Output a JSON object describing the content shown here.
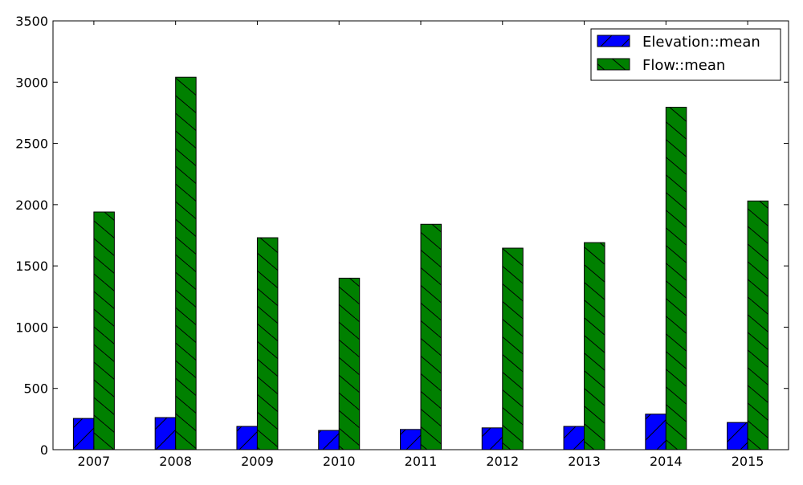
{
  "chart_data": {
    "type": "bar",
    "categories": [
      "2007",
      "2008",
      "2009",
      "2010",
      "2011",
      "2012",
      "2013",
      "2014",
      "2015"
    ],
    "series": [
      {
        "name": "Elevation::mean",
        "values": [
          255,
          262,
          190,
          157,
          165,
          178,
          190,
          290,
          222
        ],
        "color": "#0000ff",
        "hatch": "/"
      },
      {
        "name": "Flow::mean",
        "values": [
          1940,
          3040,
          1730,
          1400,
          1840,
          1645,
          1690,
          2795,
          2030
        ],
        "color": "#008000",
        "hatch": "\\"
      }
    ],
    "title": "",
    "xlabel": "",
    "ylabel": "",
    "ylim": [
      0,
      3500
    ],
    "yticks": [
      0,
      500,
      1000,
      1500,
      2000,
      2500,
      3000,
      3500
    ],
    "grid": false,
    "legend_position": "top-right"
  }
}
